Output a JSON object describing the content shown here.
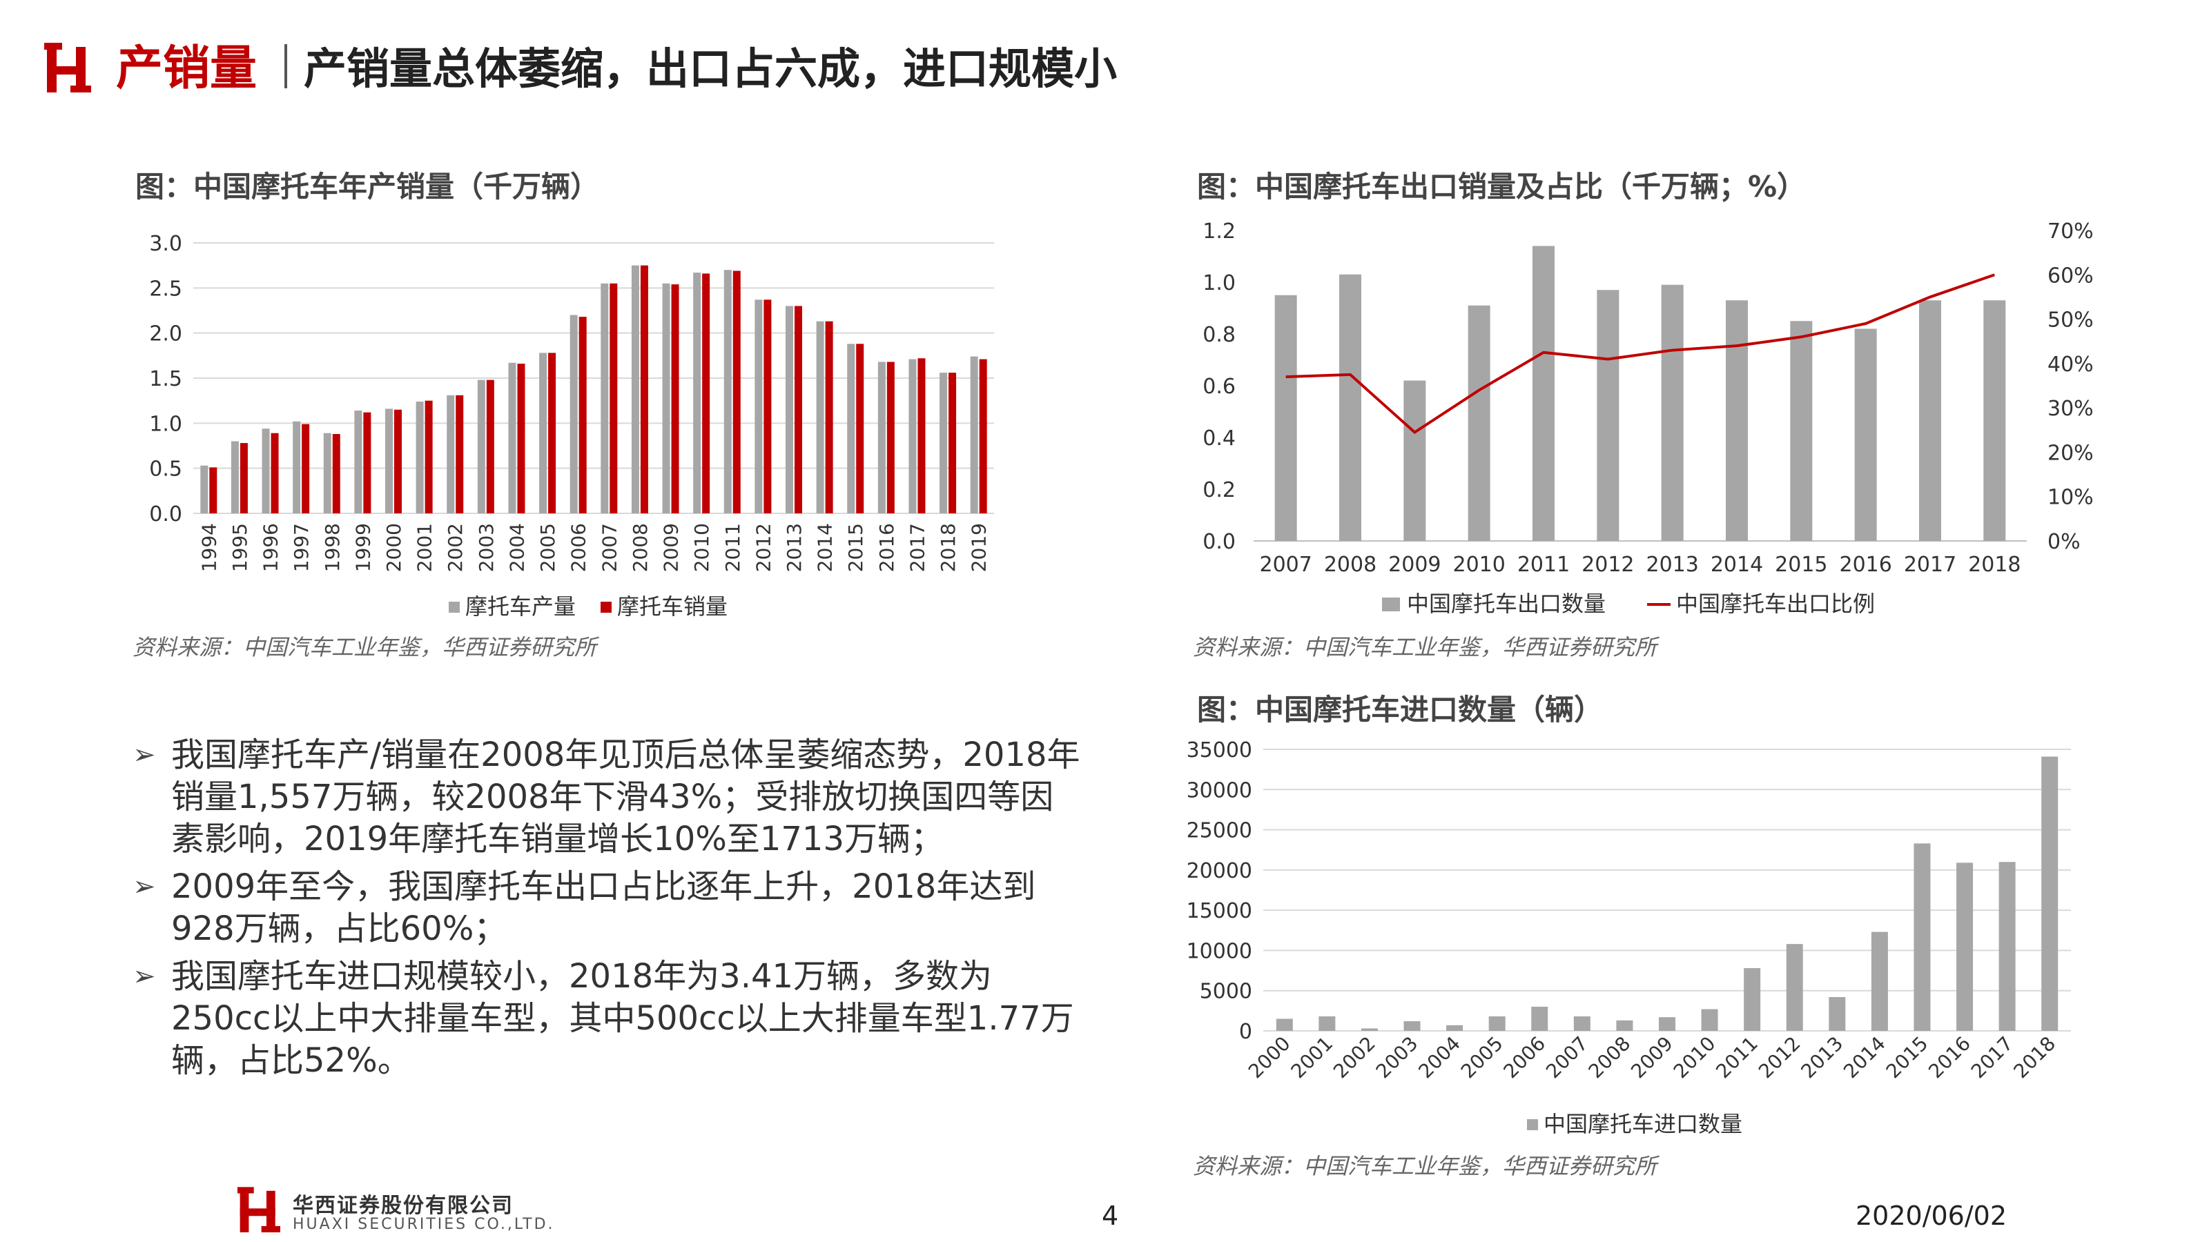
{
  "header": {
    "category": "产销量",
    "title": "产销量总体萎缩，出口占六成，进口规模小"
  },
  "colors": {
    "accent": "#c00000",
    "gray_bar": "#a6a6a6",
    "red_bar": "#c00000"
  },
  "chart1": {
    "title": "图：中国摩托车年产销量（千万辆）",
    "source": "资料来源：中国汽车工业年鉴，华西证券研究所"
  },
  "chart2": {
    "title": "图：中国摩托车出口销量及占比（千万辆；%）",
    "source": "资料来源：中国汽车工业年鉴，华西证券研究所"
  },
  "chart3": {
    "title": "图：中国摩托车进口数量（辆）",
    "source": "资料来源：中国汽车工业年鉴，华西证券研究所"
  },
  "bullets": [
    "我国摩托车产/销量在2008年见顶后总体呈萎缩态势，2018年销量1,557万辆，较2008年下滑43%；受排放切换国四等因素影响，2019年摩托车销量增长10%至1713万辆；",
    "2009年至今，我国摩托车出口占比逐年上升，2018年达到928万辆，占比60%；",
    "我国摩托车进口规模较小，2018年为3.41万辆，多数为250cc以上中大排量车型，其中500cc以上大排量车型1.77万辆，占比52%。"
  ],
  "footer": {
    "company_cn": "华西证券股份有限公司",
    "company_en": "HUAXI SECURITIES CO.,LTD.",
    "page": "4",
    "date": "2020/06/02"
  },
  "chart_data": [
    {
      "type": "bar",
      "title": "图：中国摩托车年产销量（千万辆）",
      "categories": [
        "1994",
        "1995",
        "1996",
        "1997",
        "1998",
        "1999",
        "2000",
        "2001",
        "2002",
        "2003",
        "2004",
        "2005",
        "2006",
        "2007",
        "2008",
        "2009",
        "2010",
        "2011",
        "2012",
        "2013",
        "2014",
        "2015",
        "2016",
        "2017",
        "2018",
        "2019"
      ],
      "series": [
        {
          "name": "摩托车产量",
          "color": "#a6a6a6",
          "values": [
            0.53,
            0.8,
            0.94,
            1.02,
            0.89,
            1.14,
            1.16,
            1.24,
            1.31,
            1.48,
            1.67,
            1.78,
            2.2,
            2.55,
            2.75,
            2.55,
            2.67,
            2.7,
            2.37,
            2.3,
            2.13,
            1.88,
            1.68,
            1.71,
            1.56,
            1.74
          ]
        },
        {
          "name": "摩托车销量",
          "color": "#c00000",
          "values": [
            0.51,
            0.78,
            0.89,
            0.99,
            0.88,
            1.12,
            1.15,
            1.25,
            1.31,
            1.48,
            1.66,
            1.78,
            2.18,
            2.55,
            2.75,
            2.54,
            2.66,
            2.69,
            2.37,
            2.3,
            2.13,
            1.88,
            1.68,
            1.72,
            1.56,
            1.71
          ]
        }
      ],
      "ylim": [
        0,
        3.0
      ],
      "yticks": [
        "0.0",
        "0.5",
        "1.0",
        "1.5",
        "2.0",
        "2.5",
        "3.0"
      ],
      "legend": "bottom"
    },
    {
      "type": "bar",
      "title": "图：中国摩托车出口销量及占比（千万辆；%）",
      "categories": [
        "2007",
        "2008",
        "2009",
        "2010",
        "2011",
        "2012",
        "2013",
        "2014",
        "2015",
        "2016",
        "2017",
        "2018"
      ],
      "series": [
        {
          "name": "中国摩托车出口数量",
          "type": "bar",
          "color": "#a6a6a6",
          "axis": "left",
          "values": [
            0.95,
            1.03,
            0.62,
            0.91,
            1.14,
            0.97,
            0.99,
            0.93,
            0.85,
            0.82,
            0.93,
            0.93
          ]
        },
        {
          "name": "中国摩托车出口比例",
          "type": "line",
          "color": "#c00000",
          "axis": "right",
          "values": [
            37,
            37.5,
            24.5,
            34,
            42.5,
            41,
            43,
            44,
            46,
            49,
            55,
            60
          ]
        }
      ],
      "ylim": [
        0,
        1.2
      ],
      "yticks": [
        "0.0",
        "0.2",
        "0.4",
        "0.6",
        "0.8",
        "1.0",
        "1.2"
      ],
      "y2lim": [
        0,
        70
      ],
      "y2ticks": [
        "0%",
        "10%",
        "20%",
        "30%",
        "40%",
        "50%",
        "60%",
        "70%"
      ],
      "legend": "bottom"
    },
    {
      "type": "bar",
      "title": "图：中国摩托车进口数量（辆）",
      "categories": [
        "2000",
        "2001",
        "2002",
        "2003",
        "2004",
        "2005",
        "2006",
        "2007",
        "2008",
        "2009",
        "2010",
        "2011",
        "2012",
        "2013",
        "2014",
        "2015",
        "2016",
        "2017",
        "2018"
      ],
      "series": [
        {
          "name": "中国摩托车进口数量",
          "color": "#a6a6a6",
          "values": [
            1500,
            1800,
            300,
            1200,
            700,
            1800,
            3000,
            1800,
            1300,
            1700,
            2700,
            7800,
            10800,
            4200,
            12300,
            23300,
            20900,
            21000,
            34100
          ]
        }
      ],
      "ylim": [
        0,
        35000
      ],
      "yticks": [
        "0",
        "5000",
        "10000",
        "15000",
        "20000",
        "25000",
        "30000",
        "35000"
      ],
      "legend": "bottom"
    }
  ]
}
